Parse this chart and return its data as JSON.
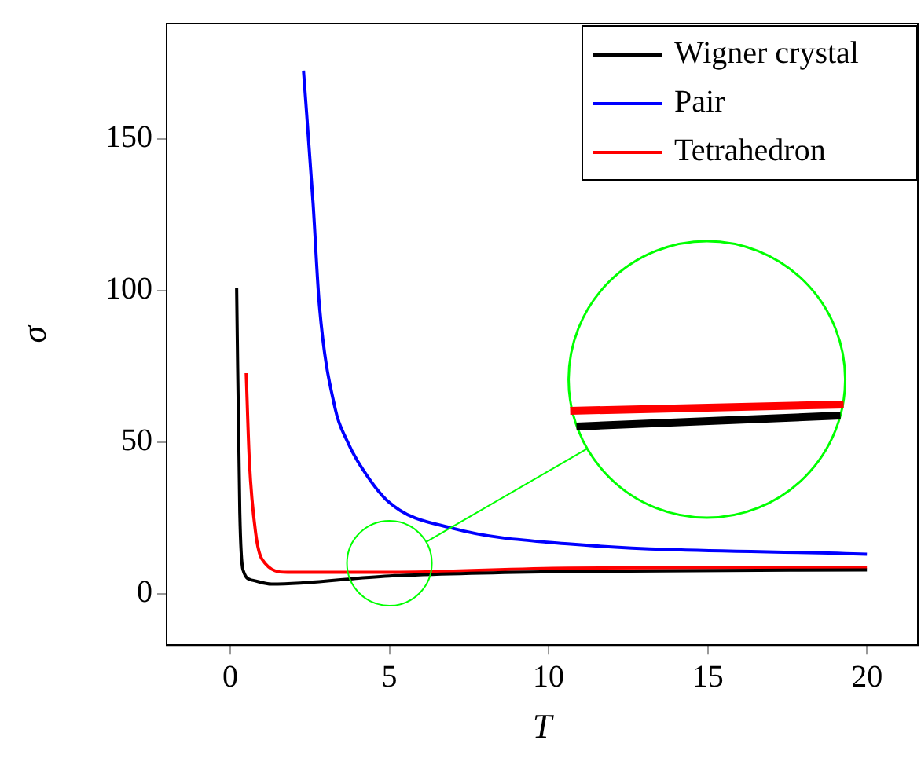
{
  "chart_data": {
    "type": "line",
    "xlabel": "T",
    "ylabel": "σ",
    "xlim": [
      -2,
      21.6
    ],
    "ylim": [
      -17,
      188
    ],
    "xticks": [
      0,
      5,
      10,
      15,
      20
    ],
    "yticks": [
      0,
      50,
      100,
      150
    ],
    "grid": false,
    "legend": "top right",
    "marker": "none",
    "line_style": "solid",
    "series": [
      {
        "name": "Wigner crystal",
        "color": "#000000",
        "x": [
          0.2,
          0.3,
          0.4,
          0.7,
          1.3,
          5.0,
          10.6,
          20
        ],
        "values": [
          100.9,
          26.6,
          7.8,
          4.4,
          3.1,
          5.8,
          7.3,
          7.8
        ]
      },
      {
        "name": "Pair",
        "color": "#0000ff",
        "x": [
          2.3,
          2.6,
          2.8,
          3.3,
          3.66,
          4.0,
          5.0,
          7.0,
          10.6,
          20
        ],
        "values": [
          172.5,
          129,
          95,
          60.8,
          50.6,
          43.7,
          30,
          21.5,
          16.4,
          13
        ]
      },
      {
        "name": "Tetrahedron",
        "color": "#ff0000",
        "x": [
          0.5,
          0.6,
          0.8,
          1.0,
          1.8,
          5.0,
          10.6,
          20
        ],
        "values": [
          72.7,
          43.7,
          19.8,
          11.3,
          7,
          7,
          8.4,
          8.7
        ]
      }
    ]
  }
}
